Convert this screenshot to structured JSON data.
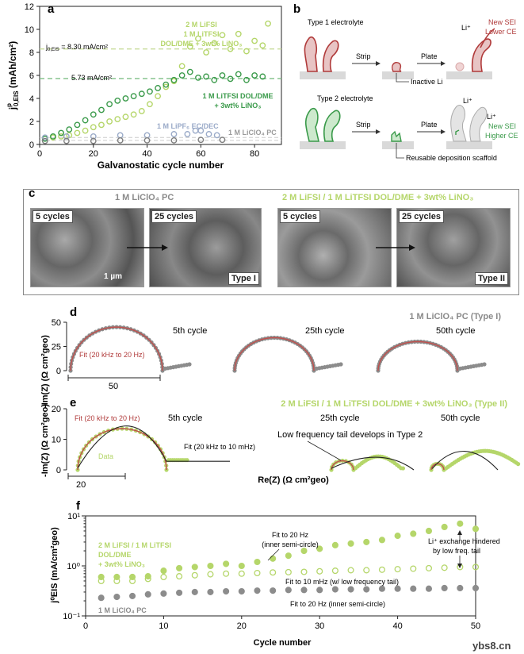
{
  "panel_a": {
    "letter": "a",
    "xlabel": "Galvanostatic cycle number",
    "ylabel": "j",
    "ylabel_sup": "p",
    "ylabel_sub": "0,EIS",
    "ylabel_unit": "(mAh/cm²)",
    "xticks": [
      "0",
      "20",
      "40",
      "60",
      "80"
    ],
    "yticks": [
      "0",
      "2",
      "4",
      "6",
      "8",
      "10",
      "12"
    ],
    "ann_830_prefix": "j",
    "ann_830_sub": "0,EIS",
    "ann_830": " = 8.30 mA/cm²",
    "ann_573": "5.73 mA/cm²",
    "label_light_1": "2 M LiFSI",
    "label_light_2": "1 M LiTFSI",
    "label_light_3": "DOL/DME + 3wt% LiNO₃",
    "label_dark_1": "1 M LiTFSI DOL/DME",
    "label_dark_2": "+ 3wt% LiNO₃",
    "label_pf6": "1 M LiPF₆ EC/DEC",
    "label_clo4": "1 M LiClO₄ PC"
  },
  "panel_b": {
    "letter": "b",
    "type1": "Type 1 electrolyte",
    "type2": "Type 2 electrolyte",
    "strip": "Strip",
    "plate": "Plate",
    "li_ion": "Li⁺",
    "new_sei_lower_1": "New SEI",
    "new_sei_lower_2": "Lower CE",
    "new_sei_higher_1": "New SEI",
    "new_sei_higher_2": "Higher CE",
    "inactive_li": "Inactive Li",
    "reusable": "Reusable deposition scaffold"
  },
  "panel_c": {
    "letter": "c",
    "title_left": "1 M LiClO₄ PC",
    "title_right": "2 M LiFSI / 1 M LiTFSI DOL/DME + 3wt% LiNO₃",
    "cap_5": "5 cycles",
    "cap_25": "25 cycles",
    "scale": "1 µm",
    "type1": "Type I",
    "type2": "Type II"
  },
  "panel_d": {
    "letter": "d",
    "title": "1 M LiClO₄ PC (Type I)",
    "ylabel": "-Im(Z) (Ω cm²geo)",
    "yticks": [
      "0",
      "25",
      "50"
    ],
    "fit_label": "Fit (20 kHz to 20 Hz)",
    "cycle_5": "5th cycle",
    "cycle_25": "25th cycle",
    "cycle_50": "50th cycle",
    "scale": "50"
  },
  "panel_e": {
    "letter": "e",
    "title": "2 M LiFSI / 1 M LiTFSI DOL/DME + 3wt% LiNO₃ (Type II)",
    "ylabel": "-Im(Z) (Ω cm²geo)",
    "xlabel": "Re(Z) (Ω cm²geo)",
    "yticks": [
      "0",
      "10",
      "20"
    ],
    "fit_label": "Fit (20 kHz to 20 Hz)",
    "fit_label_2": "Fit (20 kHz to 10 mHz)",
    "data_label": "Data",
    "tail_label": "Low frequency tail develops in Type 2",
    "cycle_5": "5th cycle",
    "cycle_25": "25th cycle",
    "cycle_50": "50th cycle",
    "scale": "20"
  },
  "panel_f": {
    "letter": "f",
    "xlabel": "Cycle number",
    "ylabel": "j⁰EIS (mA/cm²geo)",
    "xticks": [
      "0",
      "10",
      "20",
      "30",
      "40",
      "50"
    ],
    "yticks": [
      "10⁻¹",
      "10⁰",
      "10¹"
    ],
    "ann_fit20": "Fit to 20 Hz",
    "ann_fit20b": "(inner semi-circle)",
    "ann_fit10": "Fit to 10 mHz (w/ low frequency tail)",
    "ann_fit20c": "Fit to 20 Hz (inner semi-circle)",
    "ann_li_1": "Li⁺ exchange hindered",
    "ann_li_2": "by low freq. tail",
    "label_light_1": "2 M LiFSI / 1 M LiTFSI",
    "label_light_2": "DOL/DME",
    "label_light_3": "+ 3wt% LiNO₃",
    "label_gray": "1 M LiClO₄ PC"
  },
  "watermark": "ybs8.cn",
  "colors": {
    "dark_green": "#3a9a4a",
    "light_green": "#b5d66a",
    "gray": "#7f7f7f",
    "red": "#b03a3a",
    "blue_gray": "#9aaac8"
  },
  "chart_data": [
    {
      "type": "scatter",
      "panel": "a",
      "xlabel": "Galvanostatic cycle number",
      "ylabel": "j0,EIS (mAh/cm²)",
      "xlim": [
        0,
        90
      ],
      "ylim": [
        0,
        12
      ],
      "reference_lines": [
        8.3,
        5.73
      ],
      "series": [
        {
          "name": "2 M LiFSI / 1 M LiTFSI DOL/DME + 3wt% LiNO₃",
          "x": [
            2,
            5,
            8,
            11,
            14,
            17,
            20,
            23,
            26,
            29,
            32,
            35,
            38,
            41,
            44,
            47,
            50,
            53,
            56,
            59,
            62,
            65,
            68,
            71,
            74,
            77,
            80,
            83,
            85
          ],
          "y": [
            0.5,
            0.6,
            0.7,
            0.8,
            1.0,
            1.2,
            1.5,
            1.7,
            2.0,
            2.2,
            2.4,
            2.6,
            2.9,
            3.5,
            4.2,
            5.0,
            5.5,
            6.8,
            8.5,
            9.2,
            8.0,
            8.8,
            9.5,
            8.3,
            9.6,
            8.1,
            9.0,
            8.6,
            10.5
          ]
        },
        {
          "name": "1 M LiTFSI DOL/DME + 3wt% LiNO₃",
          "x": [
            2,
            5,
            8,
            11,
            14,
            17,
            20,
            23,
            26,
            29,
            32,
            35,
            38,
            41,
            44,
            47,
            50,
            53,
            56,
            59,
            62,
            65,
            68,
            71,
            74,
            77,
            80,
            83
          ],
          "y": [
            0.5,
            0.7,
            1.0,
            1.3,
            1.7,
            2.1,
            2.6,
            3.0,
            3.5,
            3.8,
            4.0,
            4.2,
            4.4,
            4.6,
            4.9,
            5.2,
            5.6,
            6.0,
            6.3,
            5.8,
            5.9,
            5.6,
            6.0,
            5.7,
            6.1,
            5.6,
            6.0,
            5.9
          ]
        },
        {
          "name": "1 M LiPF₆ EC/DEC",
          "x": [
            2,
            10,
            20,
            30,
            40,
            50,
            55,
            58,
            60,
            63,
            66
          ],
          "y": [
            0.6,
            0.7,
            0.7,
            0.8,
            0.8,
            0.9,
            0.9,
            1.2,
            1.2,
            0.9,
            0.8
          ]
        },
        {
          "name": "1 M LiClO₄ PC",
          "x": [
            2,
            10,
            20,
            30,
            40,
            50,
            60,
            68
          ],
          "y": [
            0.3,
            0.3,
            0.3,
            0.35,
            0.35,
            0.35,
            0.4,
            0.4
          ]
        }
      ]
    },
    {
      "type": "scatter",
      "panel": "f",
      "xlabel": "Cycle number",
      "ylabel": "j0,EIS (mA/cm²geo)",
      "xlim": [
        0,
        50
      ],
      "ylim": [
        0.1,
        10
      ],
      "yscale": "log",
      "series": [
        {
          "name": "Fit to 20 Hz (inner semi-circle)",
          "x": [
            2,
            4,
            6,
            8,
            10,
            12,
            14,
            16,
            18,
            20,
            22,
            24,
            26,
            28,
            30,
            32,
            34,
            36,
            38,
            40,
            42,
            44,
            46,
            48,
            50
          ],
          "y": [
            0.6,
            0.6,
            0.6,
            0.62,
            0.8,
            0.9,
            0.95,
            1.0,
            1.1,
            1.0,
            1.2,
            1.4,
            1.6,
            2.0,
            2.2,
            2.6,
            2.8,
            3.0,
            3.3,
            4.0,
            4.4,
            5.0,
            6.0,
            7.0,
            5.5
          ]
        },
        {
          "name": "Fit to 10 mHz (w/ low frequency tail)",
          "x": [
            2,
            4,
            6,
            8,
            10,
            12,
            14,
            16,
            18,
            20,
            22,
            24,
            26,
            28,
            30,
            32,
            34,
            36,
            38,
            40,
            42,
            44,
            46,
            48,
            50
          ],
          "y": [
            0.5,
            0.5,
            0.5,
            0.55,
            0.6,
            0.62,
            0.65,
            0.68,
            0.7,
            0.7,
            0.72,
            0.74,
            0.75,
            0.76,
            0.78,
            0.8,
            0.82,
            0.82,
            0.84,
            0.86,
            0.88,
            0.9,
            0.92,
            0.95,
            0.95
          ]
        },
        {
          "name": "1 M LiClO₄ PC fit to 20 Hz",
          "x": [
            2,
            4,
            6,
            8,
            10,
            12,
            14,
            16,
            18,
            20,
            22,
            24,
            26,
            28,
            30,
            32,
            34,
            36,
            38,
            40,
            42,
            44,
            46,
            48,
            50
          ],
          "y": [
            0.23,
            0.24,
            0.25,
            0.27,
            0.28,
            0.29,
            0.3,
            0.3,
            0.31,
            0.31,
            0.32,
            0.32,
            0.33,
            0.33,
            0.33,
            0.34,
            0.34,
            0.34,
            0.35,
            0.35,
            0.35,
            0.35,
            0.36,
            0.36,
            0.36
          ]
        }
      ]
    }
  ]
}
